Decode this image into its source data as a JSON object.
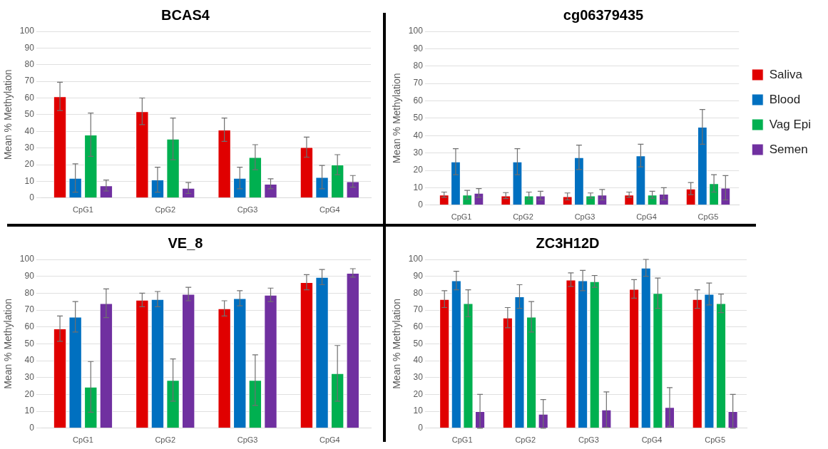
{
  "chart_data": [
    {
      "type": "bar",
      "title": "BCAS4",
      "ylabel": "Mean % Methylation",
      "categories": [
        "CpG1",
        "CpG2",
        "CpG3",
        "CpG4"
      ],
      "ylim": [
        0,
        100
      ],
      "yticks": [
        0,
        10,
        20,
        30,
        40,
        50,
        60,
        70,
        80,
        90,
        100
      ],
      "grid": "y",
      "legend": false,
      "series": [
        {
          "color": "#e00000",
          "values": [
            61,
            52,
            41,
            30.5
          ],
          "errors": [
            8.5,
            8,
            7,
            6
          ]
        },
        {
          "color": "#0070c0",
          "values": [
            12,
            11,
            12,
            12.5
          ],
          "errors": [
            8.5,
            7.5,
            6.5,
            7
          ]
        },
        {
          "color": "#00b050",
          "values": [
            38,
            35.5,
            24.5,
            20
          ],
          "errors": [
            13,
            12.5,
            7.5,
            6
          ]
        },
        {
          "color": "#7030a0",
          "values": [
            7.5,
            6,
            8.5,
            10
          ],
          "errors": [
            3.3,
            3.3,
            3,
            3.5
          ]
        }
      ]
    },
    {
      "type": "bar",
      "title": "cg06379435",
      "ylabel": "Mean % Methylation",
      "categories": [
        "CpG1",
        "CpG2",
        "CpG3",
        "CpG4",
        "CpG5"
      ],
      "ylim": [
        0,
        100
      ],
      "yticks": [
        0,
        10,
        20,
        30,
        40,
        50,
        60,
        70,
        80,
        90,
        100
      ],
      "grid": "y",
      "legend": "right",
      "series": [
        {
          "name": "Saliva",
          "color": "#e00000",
          "values": [
            6,
            5.5,
            5,
            6,
            9.5
          ],
          "errors": [
            1.5,
            1.7,
            2,
            1.5,
            3.5
          ]
        },
        {
          "name": "Blood",
          "color": "#0070c0",
          "values": [
            25,
            25,
            27.5,
            28.5,
            45
          ],
          "errors": [
            7.5,
            7.5,
            7,
            6.5,
            10
          ]
        },
        {
          "name": "Vag Epi",
          "color": "#00b050",
          "values": [
            6,
            5.5,
            5.5,
            6,
            12.5
          ],
          "errors": [
            2.5,
            2,
            1.5,
            2,
            5
          ]
        },
        {
          "name": "Semen",
          "color": "#7030a0",
          "values": [
            7,
            5.5,
            6,
            6.5,
            10
          ],
          "errors": [
            2.5,
            2.5,
            3,
            3.5,
            7
          ]
        }
      ]
    },
    {
      "type": "bar",
      "title": "VE_8",
      "ylabel": "Mean % Methylation",
      "categories": [
        "CpG1",
        "CpG2",
        "CpG3",
        "CpG4"
      ],
      "ylim": [
        0,
        100
      ],
      "yticks": [
        0,
        10,
        20,
        30,
        40,
        50,
        60,
        70,
        80,
        90,
        100
      ],
      "grid": "y",
      "legend": false,
      "series": [
        {
          "color": "#e00000",
          "values": [
            59,
            76,
            71,
            86.5
          ],
          "errors": [
            7.5,
            4,
            4.5,
            4.5
          ]
        },
        {
          "color": "#0070c0",
          "values": [
            66,
            76.5,
            77,
            89.5
          ],
          "errors": [
            9,
            4.5,
            4.5,
            4.5
          ]
        },
        {
          "color": "#00b050",
          "values": [
            24.5,
            28.5,
            28.5,
            32.5
          ],
          "errors": [
            15,
            12.5,
            15,
            16.5
          ]
        },
        {
          "color": "#7030a0",
          "values": [
            74,
            79.5,
            79,
            92
          ],
          "errors": [
            8.5,
            4,
            4,
            2.5
          ]
        }
      ]
    },
    {
      "type": "bar",
      "title": "ZC3H12D",
      "ylabel": "Mean % Methylation",
      "categories": [
        "CpG1",
        "CpG2",
        "CpG3",
        "CpG4",
        "CpG5"
      ],
      "ylim": [
        0,
        100
      ],
      "yticks": [
        0,
        10,
        20,
        30,
        40,
        50,
        60,
        70,
        80,
        90,
        100
      ],
      "grid": "y",
      "legend": false,
      "series": [
        {
          "color": "#e00000",
          "values": [
            76.5,
            65.5,
            88,
            82.5,
            76.5
          ],
          "errors": [
            5,
            6,
            4,
            5.5,
            5.5
          ]
        },
        {
          "color": "#0070c0",
          "values": [
            87.5,
            78,
            87.5,
            95,
            79.5
          ],
          "errors": [
            5.5,
            7,
            6,
            5,
            6.5
          ]
        },
        {
          "color": "#00b050",
          "values": [
            74,
            66,
            87,
            80,
            74
          ],
          "errors": [
            8,
            9,
            3.5,
            9,
            5.5
          ]
        },
        {
          "color": "#7030a0",
          "values": [
            10,
            8.5,
            11,
            12.5,
            10
          ],
          "errors": [
            10,
            8.5,
            10.5,
            11.5,
            10
          ]
        }
      ]
    }
  ]
}
